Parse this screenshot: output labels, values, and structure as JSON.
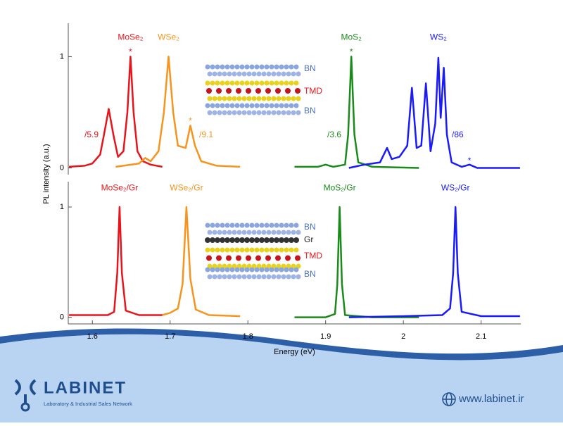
{
  "chart_data": [
    {
      "type": "line",
      "y_label": "PL intensity (a.u.)",
      "xlim": [
        1.569,
        2.151
      ],
      "ylim": [
        -0.06,
        1.3
      ],
      "yticks": [
        0,
        1
      ],
      "series": [
        {
          "name": "MoSe₂",
          "color": "#e8141b",
          "x": [
            1.57,
            1.59,
            1.6,
            1.61,
            1.615,
            1.621,
            1.627,
            1.633,
            1.64,
            1.645,
            1.649,
            1.653,
            1.658,
            1.665,
            1.675,
            1.69
          ],
          "values": [
            0.01,
            0.02,
            0.04,
            0.12,
            0.3,
            0.53,
            0.3,
            0.1,
            0.15,
            0.5,
            1.0,
            0.5,
            0.15,
            0.06,
            0.03,
            0.01
          ]
        },
        {
          "name": "WSe₂",
          "color": "#f7941d",
          "x": [
            1.63,
            1.66,
            1.668,
            1.675,
            1.685,
            1.692,
            1.698,
            1.704,
            1.71,
            1.72,
            1.726,
            1.732,
            1.74,
            1.76,
            1.79
          ],
          "values": [
            0.01,
            0.04,
            0.09,
            0.06,
            0.15,
            0.5,
            1.0,
            0.5,
            0.2,
            0.18,
            0.38,
            0.2,
            0.06,
            0.02,
            0.01
          ]
        },
        {
          "name": "MoS₂",
          "color": "#1a8a1a",
          "x": [
            1.86,
            1.89,
            1.9,
            1.91,
            1.925,
            1.929,
            1.933,
            1.937,
            1.942,
            1.96,
            2.02
          ],
          "values": [
            0.01,
            0.01,
            0.03,
            0.01,
            0.03,
            0.3,
            1.0,
            0.3,
            0.05,
            0.01,
            0
          ]
        },
        {
          "name": "WS₂",
          "color": "#1a1aff",
          "x": [
            1.93,
            1.95,
            1.97,
            1.979,
            1.985,
            1.995,
            2.005,
            2.011,
            2.017,
            2.023,
            2.029,
            2.035,
            2.041,
            2.045,
            2.048,
            2.052,
            2.056,
            2.062,
            2.075,
            2.085,
            2.095,
            2.15
          ],
          "values": [
            0,
            0.03,
            0.05,
            0.18,
            0.08,
            0.1,
            0.2,
            0.72,
            0.18,
            0.2,
            0.76,
            0.15,
            0.4,
            0.99,
            0.45,
            0.9,
            0.3,
            0.05,
            0.01,
            0.03,
            0,
            0
          ]
        }
      ],
      "annotations": [
        "/5.9",
        "/9.1",
        "/3.6",
        "/86"
      ],
      "markers": [
        "*",
        "*",
        "*",
        "*"
      ],
      "inset": [
        "BN",
        "TMD",
        "BN"
      ]
    },
    {
      "type": "line",
      "x_label": "Energy (eV)",
      "xlim": [
        1.569,
        2.151
      ],
      "ylim": [
        -0.06,
        1.23
      ],
      "yticks": [
        0,
        1
      ],
      "xticks": [
        1.6,
        1.7,
        1.8,
        1.9,
        2.0,
        2.1
      ],
      "series": [
        {
          "name": "MoSe₂/Gr",
          "color": "#e8141b",
          "x": [
            1.57,
            1.6,
            1.62,
            1.628,
            1.632,
            1.635,
            1.638,
            1.643,
            1.66,
            1.69
          ],
          "values": [
            0.02,
            0.02,
            0.02,
            0.05,
            0.4,
            1.0,
            0.4,
            0.06,
            0.02,
            0.02
          ]
        },
        {
          "name": "WSe₂/Gr",
          "color": "#f7941d",
          "x": [
            1.69,
            1.7,
            1.71,
            1.716,
            1.721,
            1.726,
            1.733,
            1.75,
            1.79
          ],
          "values": [
            0.02,
            0.04,
            0.08,
            0.3,
            1.0,
            0.35,
            0.07,
            0.02,
            0.01
          ]
        },
        {
          "name": "MoS₂/Gr",
          "color": "#1a8a1a",
          "x": [
            1.86,
            1.9,
            1.912,
            1.915,
            1.918,
            1.921,
            1.925,
            1.96,
            2.02
          ],
          "values": [
            0,
            0,
            0.03,
            0.3,
            1.0,
            0.3,
            0.02,
            0,
            0
          ]
        },
        {
          "name": "WS₂/Gr",
          "color": "#1a1aff",
          "x": [
            1.93,
            2.0,
            2.05,
            2.06,
            2.064,
            2.067,
            2.07,
            2.075,
            2.1,
            2.15
          ],
          "values": [
            0,
            0.01,
            0.02,
            0.08,
            0.4,
            1.0,
            0.4,
            0.05,
            0.01,
            0.01
          ]
        }
      ],
      "inset": [
        "BN",
        "Gr",
        "TMD",
        "BN"
      ]
    }
  ],
  "brand": {
    "name": "LABINET",
    "tagline": "Laboratory & Industrial Sales Network",
    "url": "www.labinet.ir"
  }
}
